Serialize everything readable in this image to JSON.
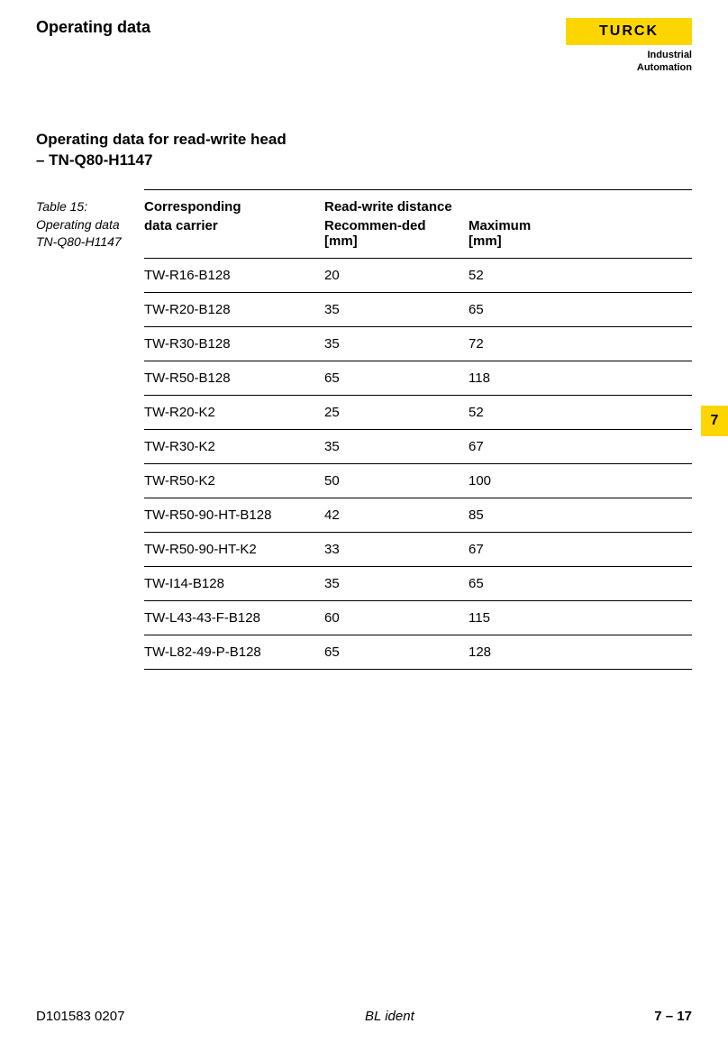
{
  "header": {
    "title": "Operating data",
    "logo": {
      "brand": "TURCK",
      "subtitle": "Industrial\n     Automation"
    }
  },
  "section": {
    "heading_line1": "Operating data for read-write head",
    "heading_line2": "– TN-Q80-H1147"
  },
  "table": {
    "caption_line1": "Table 15:",
    "caption_line2": "Operating data",
    "caption_line3": "TN-Q80-H1147",
    "headers": {
      "col1": "Corresponding",
      "col1_sub": "data carrier",
      "col2_span": "Read-write distance",
      "col2": "Recommen-ded",
      "col2_unit": "[mm]",
      "col3": "Maximum",
      "col3_unit": "[mm]"
    },
    "rows": [
      {
        "carrier": "TW-R16-B128",
        "rec": "20",
        "max": "52"
      },
      {
        "carrier": "TW-R20-B128",
        "rec": "35",
        "max": "65"
      },
      {
        "carrier": "TW-R30-B128",
        "rec": "35",
        "max": "72"
      },
      {
        "carrier": "TW-R50-B128",
        "rec": "65",
        "max": "118"
      },
      {
        "carrier": "TW-R20-K2",
        "rec": "25",
        "max": "52"
      },
      {
        "carrier": "TW-R30-K2",
        "rec": "35",
        "max": "67"
      },
      {
        "carrier": "TW-R50-K2",
        "rec": "50",
        "max": "100"
      },
      {
        "carrier": "TW-R50-90-HT-B128",
        "rec": "42",
        "max": "85"
      },
      {
        "carrier": "TW-R50-90-HT-K2",
        "rec": "33",
        "max": "67"
      },
      {
        "carrier": "TW-I14-B128",
        "rec": "35",
        "max": "65"
      },
      {
        "carrier": "TW-L43-43-F-B128",
        "rec": "60",
        "max": "115"
      },
      {
        "carrier": "TW-L82-49-P-B128",
        "rec": "65",
        "max": "128"
      }
    ]
  },
  "tab": {
    "number": "7"
  },
  "footer": {
    "left": "D101583  0207",
    "center": "BL ident",
    "right": "7 – 17"
  },
  "colors": {
    "brand_yellow": "#ffd500",
    "text": "#000000",
    "background": "#ffffff"
  }
}
